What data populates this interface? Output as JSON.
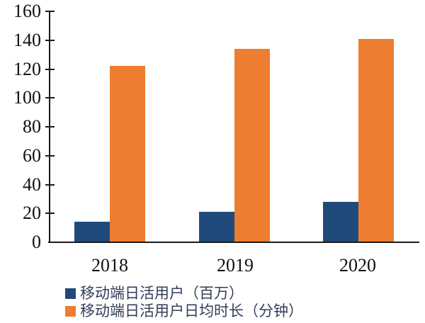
{
  "chart_data": {
    "type": "bar",
    "title": "",
    "xlabel": "",
    "ylabel": "",
    "categories": [
      "2018",
      "2019",
      "2020"
    ],
    "series": [
      {
        "name": "移动端日活用户（百万）",
        "color": "#204A7B",
        "values": [
          14,
          21,
          28
        ]
      },
      {
        "name": "移动端日活用户日均时长（分钟）",
        "color": "#ED7D31",
        "values": [
          122,
          134,
          141
        ]
      }
    ],
    "ylim": [
      0,
      160
    ],
    "yticks": [
      0,
      20,
      40,
      60,
      80,
      100,
      120,
      140,
      160
    ],
    "grid": false,
    "legend_position": "bottom-left"
  },
  "colors": {
    "axis": "#1a1a1a",
    "axis_label_text": "#111111",
    "legend_text": "#303F5A",
    "background": "#ffffff"
  }
}
